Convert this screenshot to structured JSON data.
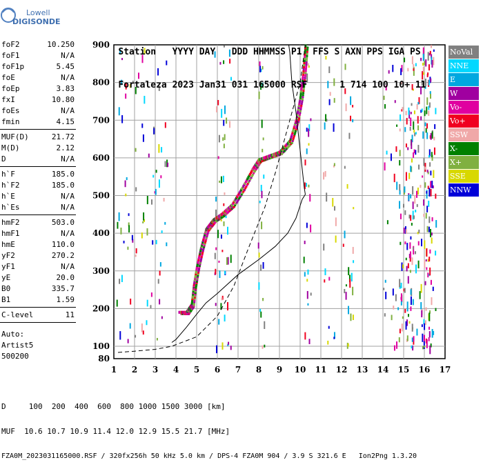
{
  "logo": {
    "line1": "Lowell",
    "line2": "DIGISONDE"
  },
  "header": {
    "labels": [
      "Station",
      "YYYY",
      "DAY",
      "DDD",
      "HHMMSS",
      "P1",
      "FFS",
      "S",
      "AXN",
      "PPS",
      "IGA",
      "PS"
    ],
    "values": [
      "Fortaleza",
      "2023",
      "Jan31",
      "031",
      "165000",
      "RSF",
      "",
      "1",
      "714",
      "100",
      "10+",
      "11"
    ]
  },
  "params": {
    "group1": [
      {
        "k": "foF2",
        "v": "10.250"
      },
      {
        "k": "foF1",
        "v": "N/A"
      },
      {
        "k": "foF1p",
        "v": "5.45"
      },
      {
        "k": "foE",
        "v": "N/A"
      },
      {
        "k": "foEp",
        "v": "3.83"
      },
      {
        "k": "fxI",
        "v": "10.80"
      },
      {
        "k": "foEs",
        "v": "N/A"
      },
      {
        "k": "fmin",
        "v": "4.15"
      }
    ],
    "group2": [
      {
        "k": "MUF(D)",
        "v": "21.72"
      },
      {
        "k": "M(D)",
        "v": "2.12"
      },
      {
        "k": "D",
        "v": "N/A"
      }
    ],
    "group3": [
      {
        "k": "h`F",
        "v": "185.0"
      },
      {
        "k": "h`F2",
        "v": "185.0"
      },
      {
        "k": "h`E",
        "v": "N/A"
      },
      {
        "k": "h`Es",
        "v": "N/A"
      }
    ],
    "group4": [
      {
        "k": "hmF2",
        "v": "503.0"
      },
      {
        "k": "hmF1",
        "v": "N/A"
      },
      {
        "k": "hmE",
        "v": "110.0"
      },
      {
        "k": "yF2",
        "v": "270.2"
      },
      {
        "k": "yF1",
        "v": "N/A"
      },
      {
        "k": "yE",
        "v": "20.0"
      },
      {
        "k": "B0",
        "v": "335.7"
      },
      {
        "k": "B1",
        "v": "1.59"
      }
    ],
    "group5": [
      {
        "k": "C-level",
        "v": "11"
      }
    ],
    "auto": [
      "Auto:",
      "Artist5",
      "500200"
    ]
  },
  "legend": [
    {
      "label": "NoVal",
      "color": "#808080"
    },
    {
      "label": "NNE",
      "color": "#00d8ff"
    },
    {
      "label": "E",
      "color": "#00a8e0"
    },
    {
      "label": "W",
      "color": "#a000a0"
    },
    {
      "label": "Vo-",
      "color": "#e000a0"
    },
    {
      "label": "Vo+",
      "color": "#f00020"
    },
    {
      "label": "SSW",
      "color": "#f0a8a8"
    },
    {
      "label": "X-",
      "color": "#008000"
    },
    {
      "label": "X+",
      "color": "#80b040"
    },
    {
      "label": "SSE",
      "color": "#d8d800"
    },
    {
      "label": "NNW",
      "color": "#0000d8"
    }
  ],
  "footer": {
    "line1": "D     100  200  400  600  800 1000 1500 3000 [km]",
    "line2": "MUF  10.6 10.7 10.9 11.4 12.0 12.9 15.5 21.7 [MHz]",
    "line3": "FZA0M_2023031165000.RSF / 320fx256h 50 kHz 5.0 km / DPS-4 FZA0M 904 / 3.9 S 321.6 E   Ion2Png 1.3.20"
  },
  "chart_data": {
    "type": "scatter",
    "x_range": [
      1,
      17
    ],
    "y_range": [
      80,
      900
    ],
    "x_ticks": [
      "1",
      "2",
      "3",
      "4",
      "5",
      "6",
      "7",
      "8",
      "9",
      "10",
      "11",
      "12",
      "13",
      "14",
      "15",
      "16",
      "17"
    ],
    "y_ticks": [
      "80",
      "100",
      "200",
      "300",
      "400",
      "500",
      "600",
      "700",
      "800",
      "900"
    ],
    "grid": true,
    "series": [
      {
        "role": "trace",
        "points": [
          [
            4.15,
            190
          ],
          [
            4.5,
            190
          ],
          [
            4.75,
            210
          ],
          [
            4.85,
            260
          ],
          [
            5.0,
            310
          ],
          [
            5.2,
            360
          ],
          [
            5.45,
            410
          ],
          [
            5.8,
            435
          ],
          [
            6.2,
            450
          ],
          [
            6.7,
            475
          ],
          [
            7.2,
            520
          ],
          [
            7.7,
            570
          ],
          [
            8.0,
            595
          ],
          [
            8.5,
            605
          ],
          [
            9.0,
            615
          ],
          [
            9.5,
            645
          ],
          [
            9.8,
            700
          ],
          [
            10.0,
            760
          ],
          [
            10.15,
            830
          ],
          [
            10.25,
            900
          ]
        ]
      },
      {
        "role": "profile",
        "points": [
          [
            3.8,
            110
          ],
          [
            4.0,
            118
          ],
          [
            4.5,
            150
          ],
          [
            5.0,
            185
          ],
          [
            5.45,
            215
          ],
          [
            6.0,
            240
          ],
          [
            7.0,
            290
          ],
          [
            8.0,
            330
          ],
          [
            8.8,
            365
          ],
          [
            9.4,
            400
          ],
          [
            9.8,
            440
          ],
          [
            10.1,
            490
          ],
          [
            10.25,
            503
          ]
        ]
      },
      {
        "role": "profile-top",
        "points": [
          [
            10.25,
            503
          ],
          [
            10.2,
            520
          ],
          [
            10.0,
            620
          ],
          [
            9.8,
            720
          ],
          [
            9.6,
            800
          ],
          [
            9.5,
            880
          ],
          [
            9.45,
            900
          ]
        ]
      },
      {
        "role": "muf-line",
        "points": [
          [
            1.2,
            90
          ],
          [
            2.0,
            92
          ],
          [
            3.0,
            95
          ],
          [
            3.8,
            100
          ],
          [
            5.0,
            125
          ],
          [
            6.0,
            180
          ],
          [
            6.8,
            260
          ],
          [
            7.5,
            360
          ],
          [
            8.3,
            470
          ],
          [
            8.8,
            560
          ],
          [
            9.3,
            660
          ],
          [
            9.6,
            720
          ],
          [
            10.0,
            800
          ],
          [
            10.25,
            900
          ]
        ]
      }
    ]
  }
}
